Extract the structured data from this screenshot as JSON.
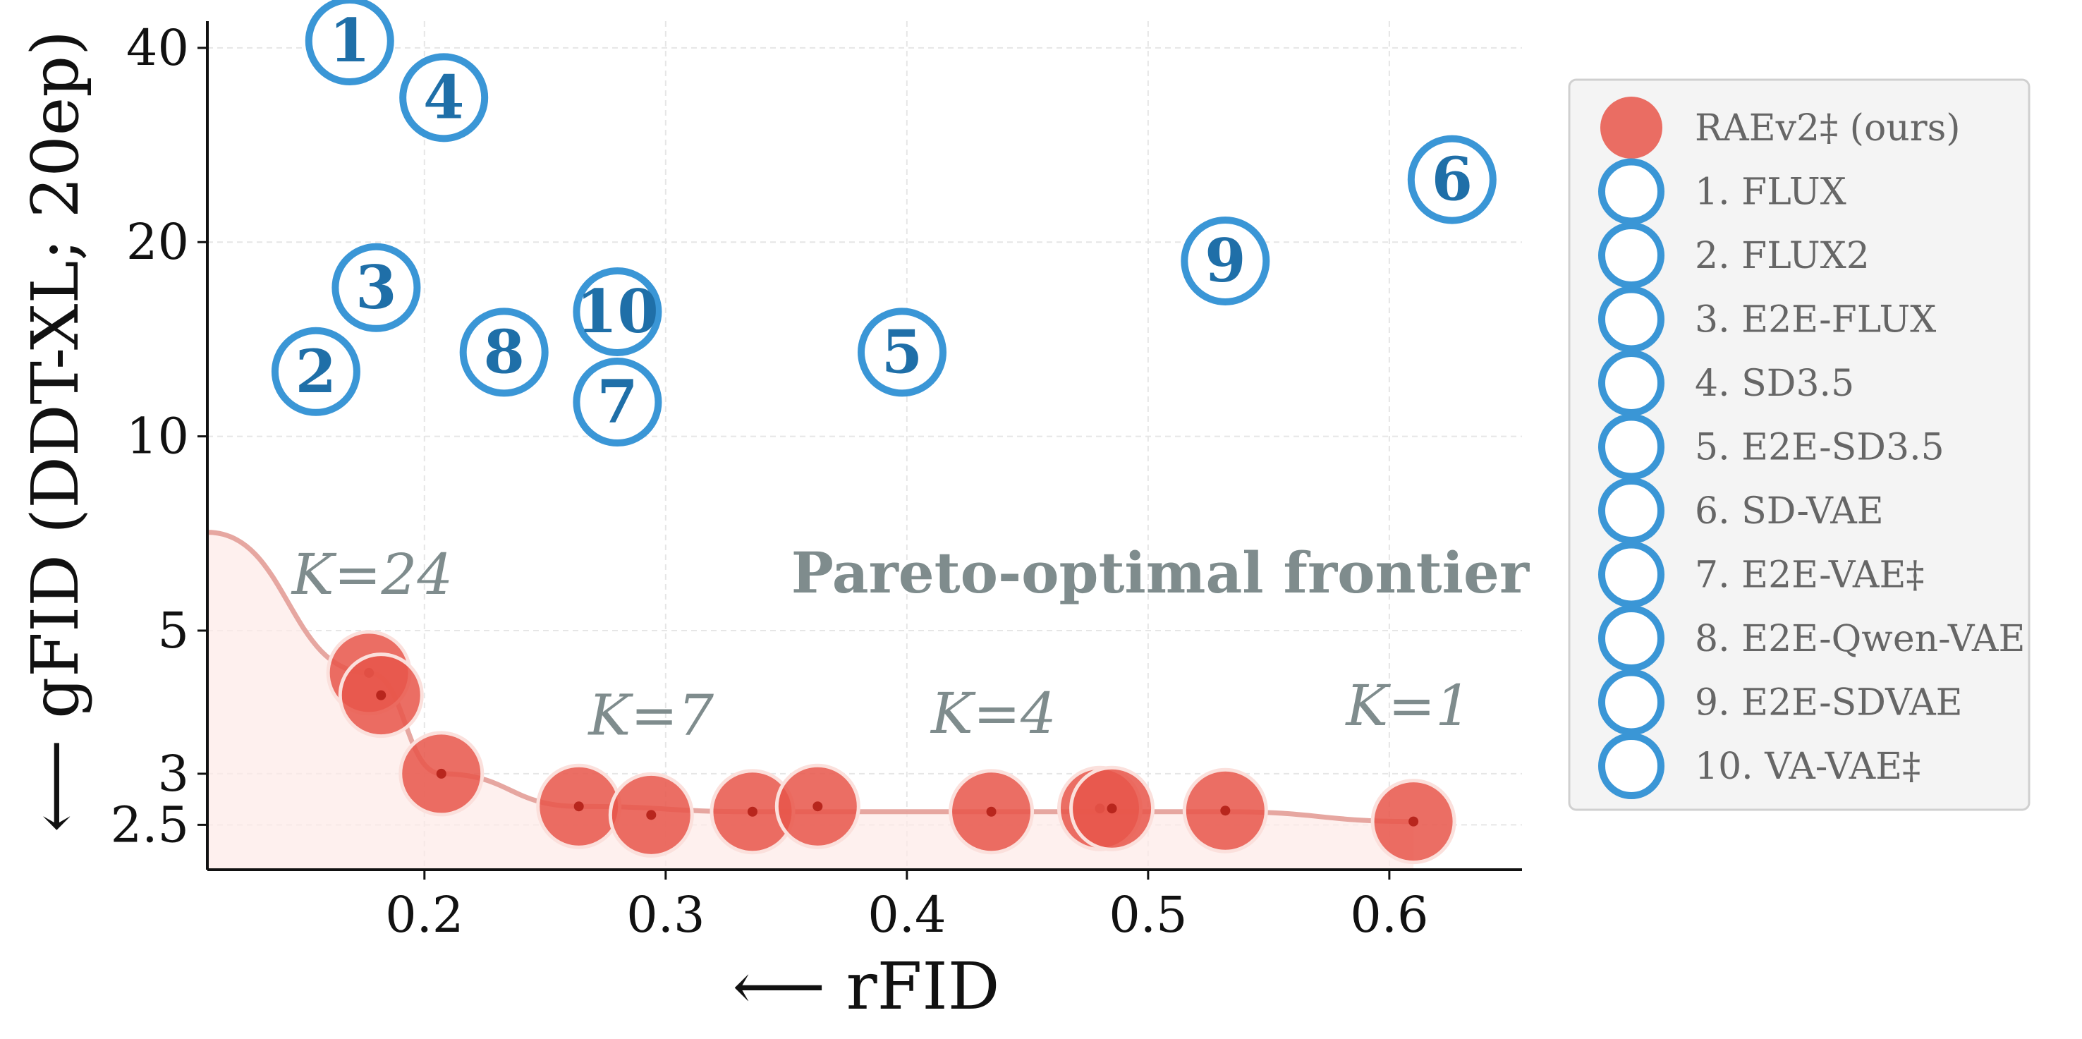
{
  "chart_data": {
    "type": "scatter",
    "xlabel": "⟵ rFID",
    "ylabel": "⟵ gFID (DDT-XL; 20ep)",
    "xlim": [
      0.11,
      0.655
    ],
    "ylim": [
      2.13,
      44
    ],
    "yscale": "log",
    "xticks": [
      "0.2",
      "0.3",
      "0.4",
      "0.5",
      "0.6"
    ],
    "xtick_values": [
      0.2,
      0.3,
      0.4,
      0.5,
      0.6
    ],
    "yticks": [
      "2.5",
      "3",
      "5",
      "10",
      "20",
      "40"
    ],
    "ytick_values": [
      2.5,
      3,
      5,
      10,
      20,
      40
    ],
    "grid": true,
    "legend_position": "right, outside",
    "annotation": "Pareto-optimal frontier",
    "k_labels": [
      {
        "text": "K=24",
        "x": 0.145,
        "y": 5.7
      },
      {
        "text": "K=7",
        "x": 0.268,
        "y": 3.45
      },
      {
        "text": "K=4",
        "x": 0.41,
        "y": 3.47
      },
      {
        "text": "K=1",
        "x": 0.582,
        "y": 3.57
      }
    ],
    "series": [
      {
        "name": "RAEv2‡ (ours)",
        "color": "#e8564a",
        "points": [
          {
            "x": 0.177,
            "y": 4.3
          },
          {
            "x": 0.182,
            "y": 3.97
          },
          {
            "x": 0.207,
            "y": 3.0
          },
          {
            "x": 0.264,
            "y": 2.67
          },
          {
            "x": 0.294,
            "y": 2.59
          },
          {
            "x": 0.336,
            "y": 2.62
          },
          {
            "x": 0.363,
            "y": 2.67
          },
          {
            "x": 0.435,
            "y": 2.62
          },
          {
            "x": 0.48,
            "y": 2.65
          },
          {
            "x": 0.485,
            "y": 2.65
          },
          {
            "x": 0.532,
            "y": 2.63
          },
          {
            "x": 0.61,
            "y": 2.53
          }
        ],
        "frontier": [
          {
            "x": 0.11,
            "y": 7.1
          },
          {
            "x": 0.177,
            "y": 4.3
          },
          {
            "x": 0.207,
            "y": 3.0
          },
          {
            "x": 0.264,
            "y": 2.67
          },
          {
            "x": 0.336,
            "y": 2.62
          },
          {
            "x": 0.435,
            "y": 2.62
          },
          {
            "x": 0.532,
            "y": 2.62
          },
          {
            "x": 0.61,
            "y": 2.53
          }
        ]
      },
      {
        "name": "1. FLUX",
        "label": "1",
        "color": "#3a96d6",
        "points": [
          {
            "x": 0.169,
            "y": 41
          }
        ]
      },
      {
        "name": "2. FLUX2",
        "label": "2",
        "color": "#3a96d6",
        "points": [
          {
            "x": 0.155,
            "y": 12.6
          }
        ]
      },
      {
        "name": "3. E2E-FLUX",
        "label": "3",
        "color": "#3a96d6",
        "points": [
          {
            "x": 0.18,
            "y": 17.0
          }
        ]
      },
      {
        "name": "4. SD3.5",
        "label": "4",
        "color": "#3a96d6",
        "points": [
          {
            "x": 0.208,
            "y": 33.5
          }
        ]
      },
      {
        "name": "5. E2E-SD3.5",
        "label": "5",
        "color": "#3a96d6",
        "points": [
          {
            "x": 0.398,
            "y": 13.5
          }
        ]
      },
      {
        "name": "6. SD-VAE",
        "label": "6",
        "color": "#3a96d6",
        "points": [
          {
            "x": 0.626,
            "y": 25.0
          }
        ]
      },
      {
        "name": "7. E2E-VAE‡",
        "label": "7",
        "color": "#3a96d6",
        "points": [
          {
            "x": 0.28,
            "y": 11.3
          }
        ]
      },
      {
        "name": "8. E2E-Qwen-VAE",
        "label": "8",
        "color": "#3a96d6",
        "points": [
          {
            "x": 0.233,
            "y": 13.5
          }
        ]
      },
      {
        "name": "9. E2E-SDVAE",
        "label": "9",
        "color": "#3a96d6",
        "points": [
          {
            "x": 0.532,
            "y": 18.7
          }
        ]
      },
      {
        "name": "10. VA-VAE‡",
        "label": "10",
        "color": "#3a96d6",
        "points": [
          {
            "x": 0.28,
            "y": 15.6
          }
        ]
      }
    ]
  }
}
